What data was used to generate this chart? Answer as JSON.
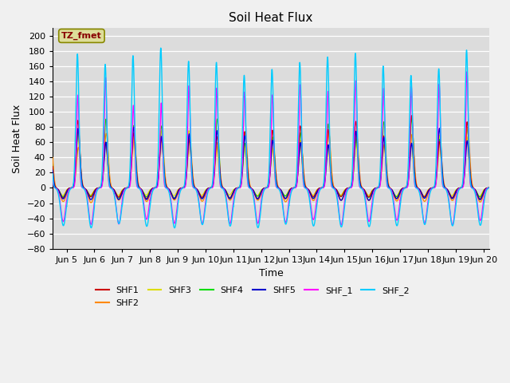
{
  "title": "Soil Heat Flux",
  "xlabel": "Time",
  "ylabel": "Soil Heat Flux",
  "xlim_days": [
    4.5,
    20.2
  ],
  "ylim": [
    -80,
    210
  ],
  "yticks": [
    -80,
    -60,
    -40,
    -20,
    0,
    20,
    40,
    60,
    80,
    100,
    120,
    140,
    160,
    180,
    200
  ],
  "xtick_labels": [
    "Jun 5",
    "Jun 6",
    "Jun 7",
    "Jun 8",
    "Jun 9",
    "Jun 10",
    "Jun 11",
    "Jun 12",
    "Jun 13",
    "Jun 14",
    "Jun 15",
    "Jun 16",
    "Jun 17",
    "Jun 18",
    "Jun 19",
    "Jun 20"
  ],
  "xtick_positions": [
    5,
    6,
    7,
    8,
    9,
    10,
    11,
    12,
    13,
    14,
    15,
    16,
    17,
    18,
    19,
    20
  ],
  "series_colors": {
    "SHF1": "#cc0000",
    "SHF2": "#ff8800",
    "SHF3": "#dddd00",
    "SHF4": "#00dd00",
    "SHF5": "#0000cc",
    "SHF_1": "#ff00ff",
    "SHF_2": "#00ccff"
  },
  "legend_box_color": "#dddd99",
  "legend_box_text": "TZ_fmet",
  "legend_box_textcolor": "#880000",
  "plot_bg": "#dcdcdc",
  "fig_bg": "#f0f0f0"
}
